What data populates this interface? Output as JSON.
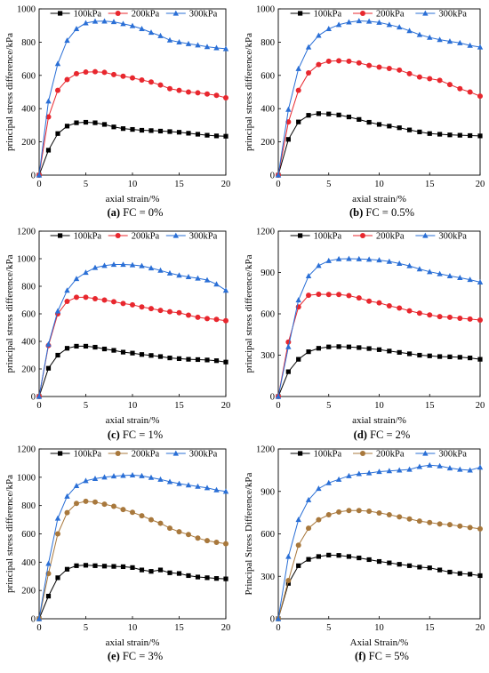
{
  "chart_data": [
    {
      "type": "line",
      "title": "",
      "xlabel": "axial strain/%",
      "ylabel": "principal stress difference/kPa",
      "xlim": [
        0,
        20
      ],
      "ylim": [
        0,
        1000
      ],
      "xticks": [
        "0",
        "5",
        "10",
        "15",
        "20"
      ],
      "yticks": [
        "0",
        "200",
        "400",
        "600",
        "800",
        "1000"
      ],
      "grid": false,
      "legend_position": "top",
      "caption_label": "(a)",
      "caption_text": "FC = 0%",
      "x": [
        0,
        1,
        2,
        3,
        4,
        5,
        6,
        7,
        8,
        9,
        10,
        11,
        12,
        13,
        14,
        15,
        16,
        17,
        18,
        19,
        20
      ],
      "series": [
        {
          "name": "100kPa",
          "color": "#000000",
          "marker": "square",
          "values": [
            0,
            150,
            250,
            295,
            315,
            318,
            315,
            305,
            290,
            280,
            275,
            270,
            268,
            265,
            262,
            258,
            252,
            246,
            240,
            236,
            234
          ]
        },
        {
          "name": "200kPa",
          "color": "#e8272e",
          "marker": "circle",
          "values": [
            0,
            350,
            510,
            575,
            610,
            620,
            622,
            618,
            605,
            595,
            585,
            572,
            560,
            542,
            520,
            510,
            500,
            495,
            488,
            480,
            465
          ]
        },
        {
          "name": "300kPa",
          "color": "#2a6fd6",
          "marker": "triangle",
          "values": [
            0,
            445,
            670,
            810,
            880,
            915,
            925,
            926,
            922,
            910,
            898,
            880,
            858,
            838,
            812,
            800,
            790,
            782,
            772,
            765,
            760
          ]
        }
      ]
    },
    {
      "type": "line",
      "title": "",
      "xlabel": "axial strain/%",
      "ylabel": "principal stress difference/kPa",
      "xlim": [
        0,
        20
      ],
      "ylim": [
        0,
        1000
      ],
      "xticks": [
        "0",
        "5",
        "10",
        "15",
        "20"
      ],
      "yticks": [
        "0",
        "200",
        "400",
        "600",
        "800",
        "1000"
      ],
      "grid": false,
      "legend_position": "top",
      "caption_label": "(b)",
      "caption_text": "FC = 0.5%",
      "x": [
        0,
        1,
        2,
        3,
        4,
        5,
        6,
        7,
        8,
        9,
        10,
        11,
        12,
        13,
        14,
        15,
        16,
        17,
        18,
        19,
        20
      ],
      "series": [
        {
          "name": "100kPa",
          "color": "#000000",
          "marker": "square",
          "values": [
            0,
            215,
            320,
            360,
            370,
            368,
            362,
            350,
            335,
            318,
            305,
            295,
            285,
            272,
            260,
            250,
            246,
            242,
            240,
            238,
            236
          ]
        },
        {
          "name": "200kPa",
          "color": "#e8272e",
          "marker": "circle",
          "values": [
            0,
            320,
            510,
            615,
            665,
            685,
            688,
            685,
            675,
            660,
            650,
            642,
            632,
            610,
            590,
            580,
            570,
            545,
            520,
            500,
            475
          ]
        },
        {
          "name": "300kPa",
          "color": "#2a6fd6",
          "marker": "triangle",
          "values": [
            0,
            395,
            640,
            770,
            840,
            880,
            905,
            920,
            928,
            925,
            918,
            905,
            890,
            868,
            845,
            828,
            815,
            805,
            795,
            780,
            770
          ]
        }
      ]
    },
    {
      "type": "line",
      "title": "",
      "xlabel": "axial strain/%",
      "ylabel": "principal stress difference/kPa",
      "xlim": [
        0,
        20
      ],
      "ylim": [
        0,
        1200
      ],
      "xticks": [
        "0",
        "5",
        "10",
        "15",
        "20"
      ],
      "yticks": [
        "0",
        "200",
        "400",
        "600",
        "800",
        "1000",
        "1200"
      ],
      "grid": false,
      "legend_position": "top",
      "caption_label": "(c)",
      "caption_text": "FC = 1%",
      "x": [
        0,
        1,
        2,
        3,
        4,
        5,
        6,
        7,
        8,
        9,
        10,
        11,
        12,
        13,
        14,
        15,
        16,
        17,
        18,
        19,
        20
      ],
      "series": [
        {
          "name": "100kPa",
          "color": "#000000",
          "marker": "square",
          "values": [
            0,
            205,
            300,
            350,
            365,
            365,
            358,
            345,
            335,
            322,
            315,
            305,
            298,
            290,
            280,
            275,
            270,
            268,
            265,
            260,
            250
          ]
        },
        {
          "name": "200kPa",
          "color": "#e8272e",
          "marker": "circle",
          "values": [
            0,
            370,
            600,
            690,
            720,
            720,
            710,
            700,
            688,
            675,
            665,
            650,
            638,
            625,
            615,
            608,
            590,
            575,
            565,
            560,
            550
          ]
        },
        {
          "name": "300kPa",
          "color": "#2a6fd6",
          "marker": "triangle",
          "values": [
            0,
            380,
            620,
            770,
            855,
            900,
            935,
            950,
            958,
            958,
            955,
            948,
            932,
            915,
            895,
            880,
            868,
            858,
            845,
            815,
            770
          ]
        }
      ]
    },
    {
      "type": "line",
      "title": "",
      "xlabel": "axial strain/%",
      "ylabel": "principal stress difference/kPa",
      "xlim": [
        0,
        20
      ],
      "ylim": [
        0,
        1200
      ],
      "xticks": [
        "0",
        "5",
        "10",
        "15",
        "20"
      ],
      "yticks": [
        "0",
        "300",
        "600",
        "900",
        "1200"
      ],
      "grid": false,
      "legend_position": "top",
      "caption_label": "(d)",
      "caption_text": "FC = 2%",
      "x": [
        0,
        1,
        2,
        3,
        4,
        5,
        6,
        7,
        8,
        9,
        10,
        11,
        12,
        13,
        14,
        15,
        16,
        17,
        18,
        19,
        20
      ],
      "series": [
        {
          "name": "100kPa",
          "color": "#000000",
          "marker": "square",
          "values": [
            0,
            180,
            270,
            325,
            350,
            360,
            362,
            360,
            355,
            348,
            340,
            330,
            320,
            310,
            300,
            295,
            290,
            288,
            285,
            280,
            270
          ]
        },
        {
          "name": "200kPa",
          "color": "#e8272e",
          "marker": "circle",
          "values": [
            0,
            395,
            650,
            735,
            742,
            740,
            740,
            732,
            715,
            692,
            680,
            658,
            642,
            622,
            605,
            592,
            580,
            575,
            568,
            562,
            555
          ]
        },
        {
          "name": "300kPa",
          "color": "#2a6fd6",
          "marker": "triangle",
          "values": [
            0,
            360,
            700,
            875,
            950,
            985,
            998,
            1000,
            998,
            995,
            990,
            980,
            965,
            948,
            925,
            905,
            890,
            875,
            862,
            848,
            830
          ]
        }
      ]
    },
    {
      "type": "line",
      "title": "",
      "xlabel": "axial strain/%",
      "ylabel": "principal stress difference/kPa",
      "xlim": [
        0,
        20
      ],
      "ylim": [
        0,
        1200
      ],
      "xticks": [
        "0",
        "5",
        "10",
        "15",
        "20"
      ],
      "yticks": [
        "0",
        "200",
        "400",
        "600",
        "800",
        "1000",
        "1200"
      ],
      "grid": false,
      "legend_position": "top",
      "caption_label": "(e)",
      "caption_text": "FC = 3%",
      "x": [
        0,
        1,
        2,
        3,
        4,
        5,
        6,
        7,
        8,
        9,
        10,
        11,
        12,
        13,
        14,
        15,
        16,
        17,
        18,
        19,
        20
      ],
      "series": [
        {
          "name": "100kPa",
          "color": "#000000",
          "marker": "square",
          "values": [
            0,
            160,
            290,
            350,
            375,
            378,
            375,
            372,
            370,
            368,
            362,
            345,
            335,
            345,
            325,
            320,
            305,
            295,
            290,
            285,
            282
          ]
        },
        {
          "name": "200kPa",
          "color": "#a8783c",
          "marker": "circle",
          "values": [
            0,
            320,
            600,
            750,
            815,
            830,
            825,
            810,
            795,
            772,
            752,
            728,
            700,
            675,
            640,
            615,
            595,
            570,
            552,
            540,
            530
          ]
        },
        {
          "name": "300kPa",
          "color": "#2a6fd6",
          "marker": "triangle",
          "values": [
            0,
            390,
            710,
            865,
            940,
            975,
            990,
            1000,
            1008,
            1012,
            1015,
            1010,
            998,
            985,
            968,
            955,
            945,
            935,
            925,
            910,
            900
          ]
        }
      ]
    },
    {
      "type": "line",
      "title": "",
      "xlabel": "Axial Strain/%",
      "ylabel": "Principal Stress Difference/kPa",
      "xlim": [
        0,
        20
      ],
      "ylim": [
        0,
        1200
      ],
      "xticks": [
        "0",
        "5",
        "10",
        "15",
        "20"
      ],
      "yticks": [
        "0",
        "300",
        "600",
        "900",
        "1200"
      ],
      "grid": false,
      "legend_position": "top",
      "caption_label": "(f)",
      "caption_text": "FC = 5%",
      "x": [
        0,
        1,
        2,
        3,
        4,
        5,
        6,
        7,
        8,
        9,
        10,
        11,
        12,
        13,
        14,
        15,
        16,
        17,
        18,
        19,
        20
      ],
      "series": [
        {
          "name": "100kPa",
          "color": "#000000",
          "marker": "square",
          "values": [
            0,
            250,
            375,
            420,
            440,
            450,
            448,
            440,
            430,
            418,
            405,
            395,
            385,
            375,
            365,
            360,
            345,
            330,
            320,
            315,
            305
          ]
        },
        {
          "name": "200kPa",
          "color": "#a8783c",
          "marker": "circle",
          "values": [
            0,
            270,
            520,
            640,
            700,
            735,
            755,
            765,
            765,
            760,
            748,
            735,
            720,
            705,
            690,
            680,
            670,
            665,
            655,
            645,
            635
          ]
        },
        {
          "name": "300kPa",
          "color": "#2a6fd6",
          "marker": "triangle",
          "values": [
            0,
            440,
            700,
            840,
            920,
            960,
            985,
            1010,
            1025,
            1030,
            1040,
            1045,
            1050,
            1055,
            1075,
            1085,
            1080,
            1065,
            1055,
            1050,
            1070
          ]
        }
      ]
    }
  ]
}
